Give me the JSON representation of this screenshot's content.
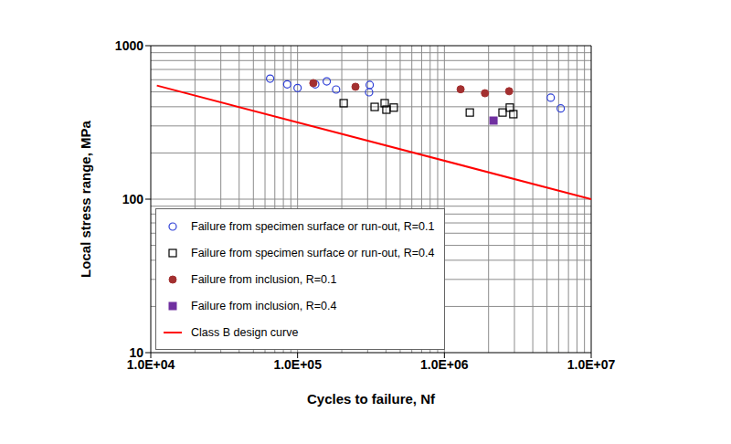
{
  "chart_data": {
    "type": "scatter",
    "x_label": "Cycles to failure, Nf",
    "y_label": "Local stress range, MPa",
    "log": true,
    "grid": true,
    "legend": "lower left",
    "xlim": [
      10000,
      10000000
    ],
    "xticks": [
      {
        "value": 10000,
        "label": "1.0E+04"
      },
      {
        "value": 100000,
        "label": "1.0E+05"
      },
      {
        "value": 1000000,
        "label": "1.0E+06"
      },
      {
        "value": 10000000,
        "label": "1.0E+07"
      }
    ],
    "ylim": [
      10,
      1000
    ],
    "yticks": [
      10,
      100,
      1000
    ],
    "series": [
      {
        "name": "Failure from specimen surface or run-out, R=0.1",
        "type": "scatter",
        "marker": "open_circle",
        "color": "#2e3fd6",
        "x": [
          65000,
          85000,
          100000,
          132000,
          158000,
          183000,
          310000,
          307000,
          5300000,
          6200000
        ],
        "values": [
          610,
          560,
          530,
          560,
          585,
          518,
          555,
          497,
          458,
          390
        ]
      },
      {
        "name": "Failure from specimen surface or run-out, R=0.4",
        "type": "scatter",
        "marker": "open_square",
        "color": "#000000",
        "x": [
          206000,
          335000,
          392000,
          403000,
          452000,
          1490000,
          2490000,
          2790000,
          2950000
        ],
        "values": [
          422,
          399,
          422,
          383,
          395,
          367,
          367,
          395,
          358
        ]
      },
      {
        "name": "Failure from inclusion, R=0.1",
        "type": "scatter",
        "marker": "circle",
        "color": "#a33030",
        "x": [
          128000,
          248000,
          1290000,
          1890000,
          2760000
        ],
        "values": [
          570,
          540,
          520,
          490,
          505
        ]
      },
      {
        "name": "Failure from inclusion, R=0.4",
        "type": "scatter",
        "marker": "square",
        "color": "#7030a0",
        "x": [
          2160000
        ],
        "values": [
          325
        ]
      },
      {
        "name": "Class B design curve",
        "type": "line",
        "marker": "none",
        "line_style": "solid",
        "color": "#ff0000",
        "x": [
          11000,
          10000000
        ],
        "values": [
          550,
          100
        ]
      }
    ]
  }
}
